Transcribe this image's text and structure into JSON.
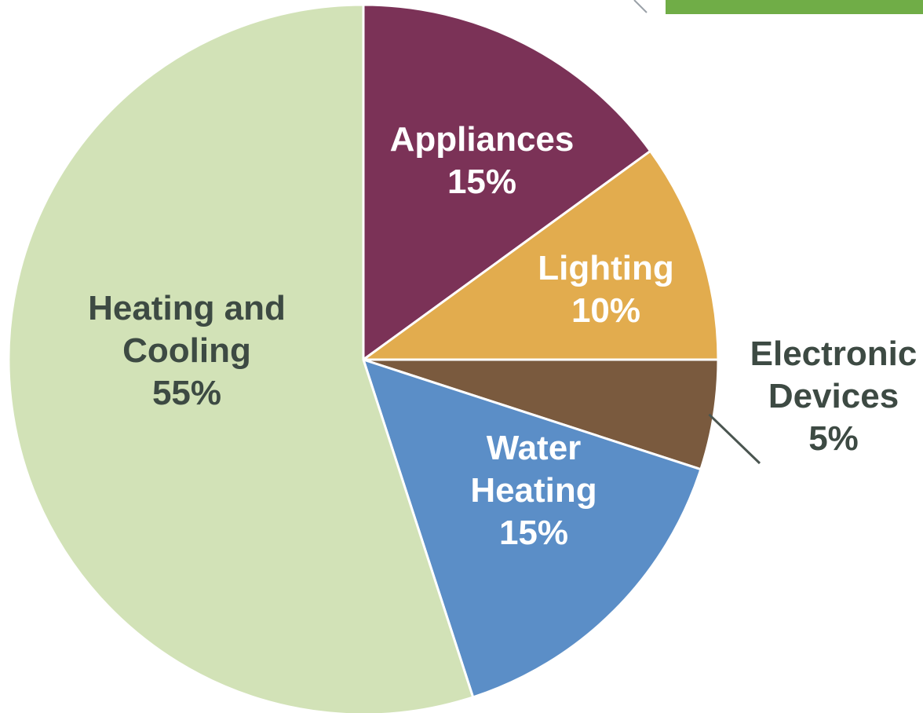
{
  "decoration": {
    "accent_color": "#70ad47",
    "line_color": "#9aa1a8"
  },
  "chart_data": {
    "type": "pie",
    "title": "",
    "start_angle_deg": 0,
    "direction": "clockwise",
    "slices": [
      {
        "name": "Appliances",
        "lines": [
          "Appliances",
          "15%"
        ],
        "value": 15,
        "color": "#7b3257",
        "text_color": "#ffffff"
      },
      {
        "name": "Lighting",
        "lines": [
          "Lighting",
          "10%"
        ],
        "value": 10,
        "color": "#e2ac4e",
        "text_color": "#ffffff"
      },
      {
        "name": "Electronic Devices",
        "lines": [
          "Electronic",
          "Devices",
          "5%"
        ],
        "value": 5,
        "color": "#7a5a3e",
        "text_color": "#3d4a43",
        "outside": true
      },
      {
        "name": "Water Heating",
        "lines": [
          "Water",
          "Heating",
          "15%"
        ],
        "value": 15,
        "color": "#5b8ec7",
        "text_color": "#ffffff"
      },
      {
        "name": "Heating and Cooling",
        "lines": [
          "Heating and",
          "Cooling",
          "55%"
        ],
        "value": 55,
        "color": "#d2e2b7",
        "text_color": "#3d4a43"
      }
    ]
  }
}
